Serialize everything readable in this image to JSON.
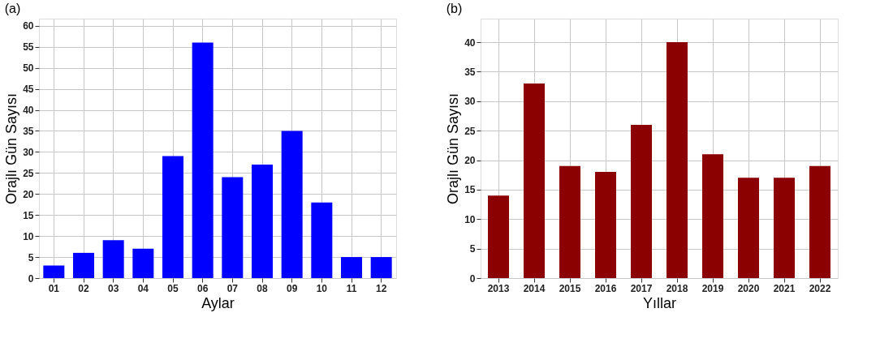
{
  "chart_data": [
    {
      "type": "bar",
      "title": "(a)",
      "xlabel": "Aylar",
      "ylabel": "Orajlı Gün Sayısı",
      "categories": [
        "01",
        "02",
        "03",
        "04",
        "05",
        "06",
        "07",
        "08",
        "09",
        "10",
        "11",
        "12"
      ],
      "series": [
        {
          "color": "#0000ff",
          "values": [
            3,
            6,
            9,
            7,
            29,
            56,
            24,
            27,
            35,
            18,
            5,
            5
          ]
        }
      ],
      "ylim": [
        0,
        61.7
      ],
      "yticks": [
        0,
        5,
        10,
        15,
        20,
        25,
        30,
        35,
        40,
        45,
        50,
        55,
        60
      ],
      "grid": true,
      "legend": false
    },
    {
      "type": "bar",
      "title": "(b)",
      "xlabel": "Yıllar",
      "ylabel": "Orajlı Gün Sayısı",
      "categories": [
        "2013",
        "2014",
        "2015",
        "2016",
        "2017",
        "2018",
        "2019",
        "2020",
        "2021",
        "2022"
      ],
      "series": [
        {
          "color": "#8b0000",
          "values": [
            14,
            33,
            19,
            18,
            26,
            40,
            21,
            17,
            17,
            19
          ]
        }
      ],
      "ylim": [
        0,
        44
      ],
      "yticks": [
        0,
        5,
        10,
        15,
        20,
        25,
        30,
        35,
        40
      ],
      "grid": true,
      "legend": false
    }
  ]
}
